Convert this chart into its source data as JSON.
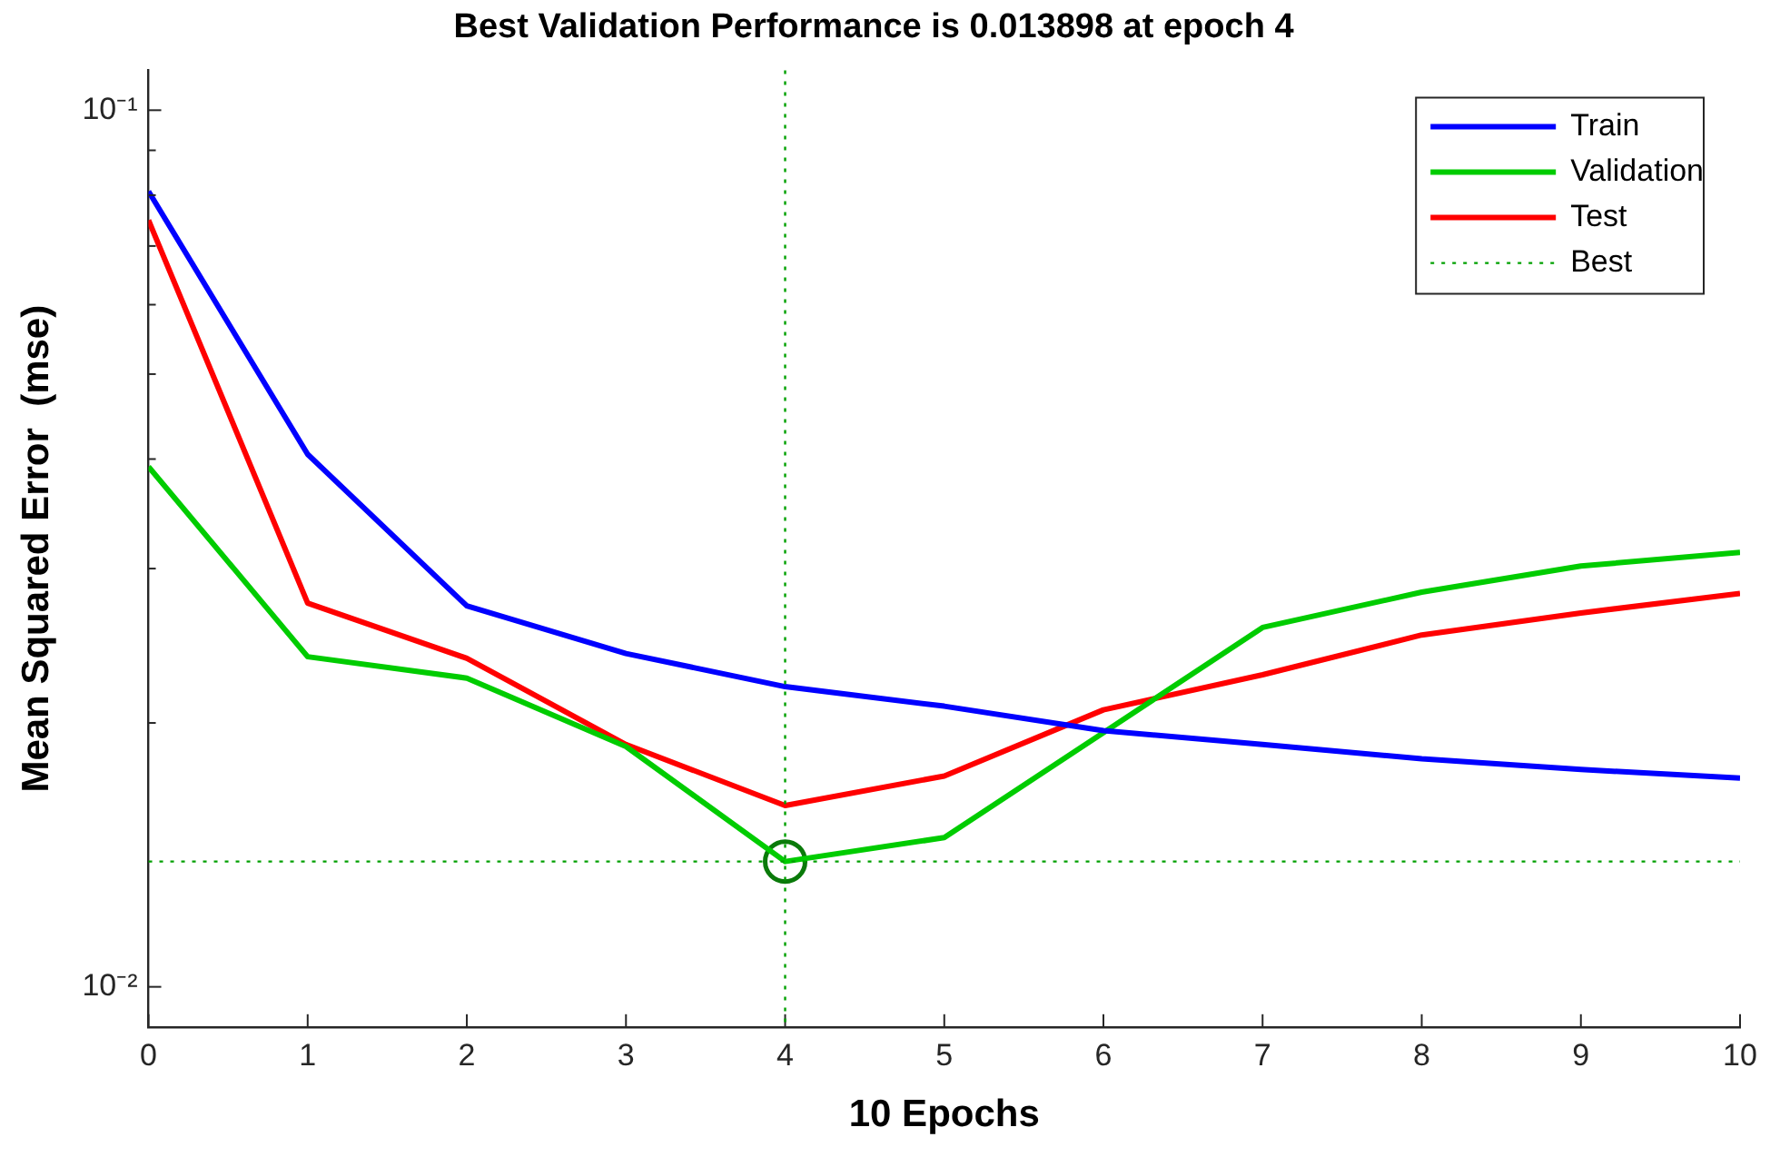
{
  "chart_data": {
    "type": "line",
    "title": "Best Validation Performance is 0.013898 at epoch 4",
    "xlabel": "10 Epochs",
    "ylabel": "Mean Squared Error  (mse)",
    "x": [
      0,
      1,
      2,
      3,
      4,
      5,
      6,
      7,
      8,
      9,
      10
    ],
    "series": [
      {
        "name": "Train",
        "color": "#0000ff",
        "values": [
          0.0808,
          0.0405,
          0.0272,
          0.024,
          0.022,
          0.0209,
          0.0196,
          0.0189,
          0.0182,
          0.0177,
          0.0173
        ]
      },
      {
        "name": "Validation",
        "color": "#00cc00",
        "values": [
          0.0392,
          0.0238,
          0.0225,
          0.0188,
          0.013898,
          0.0148,
          0.0195,
          0.0257,
          0.0282,
          0.0302,
          0.0313
        ]
      },
      {
        "name": "Test",
        "color": "#ff0000",
        "values": [
          0.0749,
          0.0274,
          0.0237,
          0.0189,
          0.0161,
          0.0174,
          0.0207,
          0.0227,
          0.0252,
          0.0267,
          0.0281
        ]
      },
      {
        "type": "scatter",
        "color": "#0a7a0a",
        "marker": "circle",
        "x": [
          4
        ],
        "values": [
          0.013898
        ]
      }
    ],
    "log": "y",
    "xlim": [
      0,
      10
    ],
    "xticks": [
      0,
      1,
      2,
      3,
      4,
      5,
      6,
      7,
      8,
      9,
      10
    ],
    "ylim": [
      0.009,
      0.111
    ],
    "yticks": [
      {
        "value": 0.01,
        "label": "10⁻²"
      },
      {
        "value": 0.02,
        "label": null
      },
      {
        "value": 0.03,
        "label": null
      },
      {
        "value": 0.04,
        "label": null
      },
      {
        "value": 0.05,
        "label": null
      },
      {
        "value": 0.06,
        "label": null
      },
      {
        "value": 0.07,
        "label": null
      },
      {
        "value": 0.08,
        "label": null
      },
      {
        "value": 0.09,
        "label": null
      },
      {
        "value": 0.1,
        "label": "10⁻¹"
      }
    ],
    "ref_lines": [
      {
        "axis": "x",
        "value": 4,
        "color": "#00a000",
        "line_style": "dotted"
      },
      {
        "axis": "y",
        "value": 0.013898,
        "label": "Best",
        "color": "#00a000",
        "line_style": "dotted"
      }
    ],
    "legend": "top right",
    "grid": false
  }
}
